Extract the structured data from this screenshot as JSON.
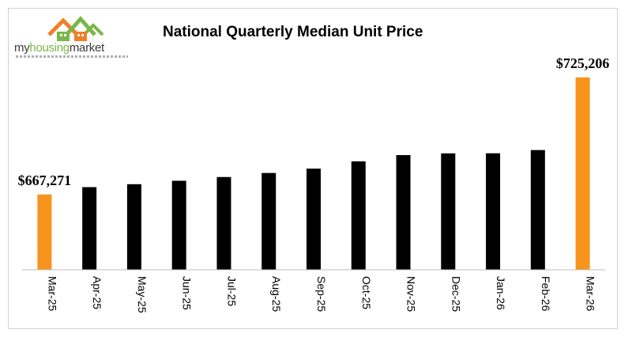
{
  "logo": {
    "icon_name": "house-roofs-icon",
    "text_part1": "my",
    "text_part2": "housing",
    "text_part3": "market",
    "colors": {
      "roof_orange": "#f07f2a",
      "roof_green": "#7ab648",
      "text": "#3a3a3a"
    }
  },
  "chart_data": {
    "type": "bar",
    "title": "National Quarterly Median Unit Price",
    "xlabel": "",
    "ylabel": "",
    "categories": [
      "Mar-25",
      "Apr-25",
      "May-25",
      "Jun-25",
      "Jul-25",
      "Aug-25",
      "Sep-25",
      "Oct-25",
      "Nov-25",
      "Dec-25",
      "Jan-26",
      "Feb-26",
      "Mar-26"
    ],
    "values": [
      667271,
      670900,
      672350,
      674050,
      675900,
      677900,
      680050,
      683650,
      686750,
      687600,
      687650,
      689250,
      725206
    ],
    "data_labels": [
      {
        "index": 0,
        "text": "$667,271"
      },
      {
        "index": 12,
        "text": "$725,206"
      }
    ],
    "highlight_indices": [
      0,
      12
    ],
    "colors": {
      "highlight": "#f7941d",
      "default": "#000000"
    },
    "ylim": [
      630000,
      740000
    ],
    "grid": false,
    "legend": "none"
  }
}
